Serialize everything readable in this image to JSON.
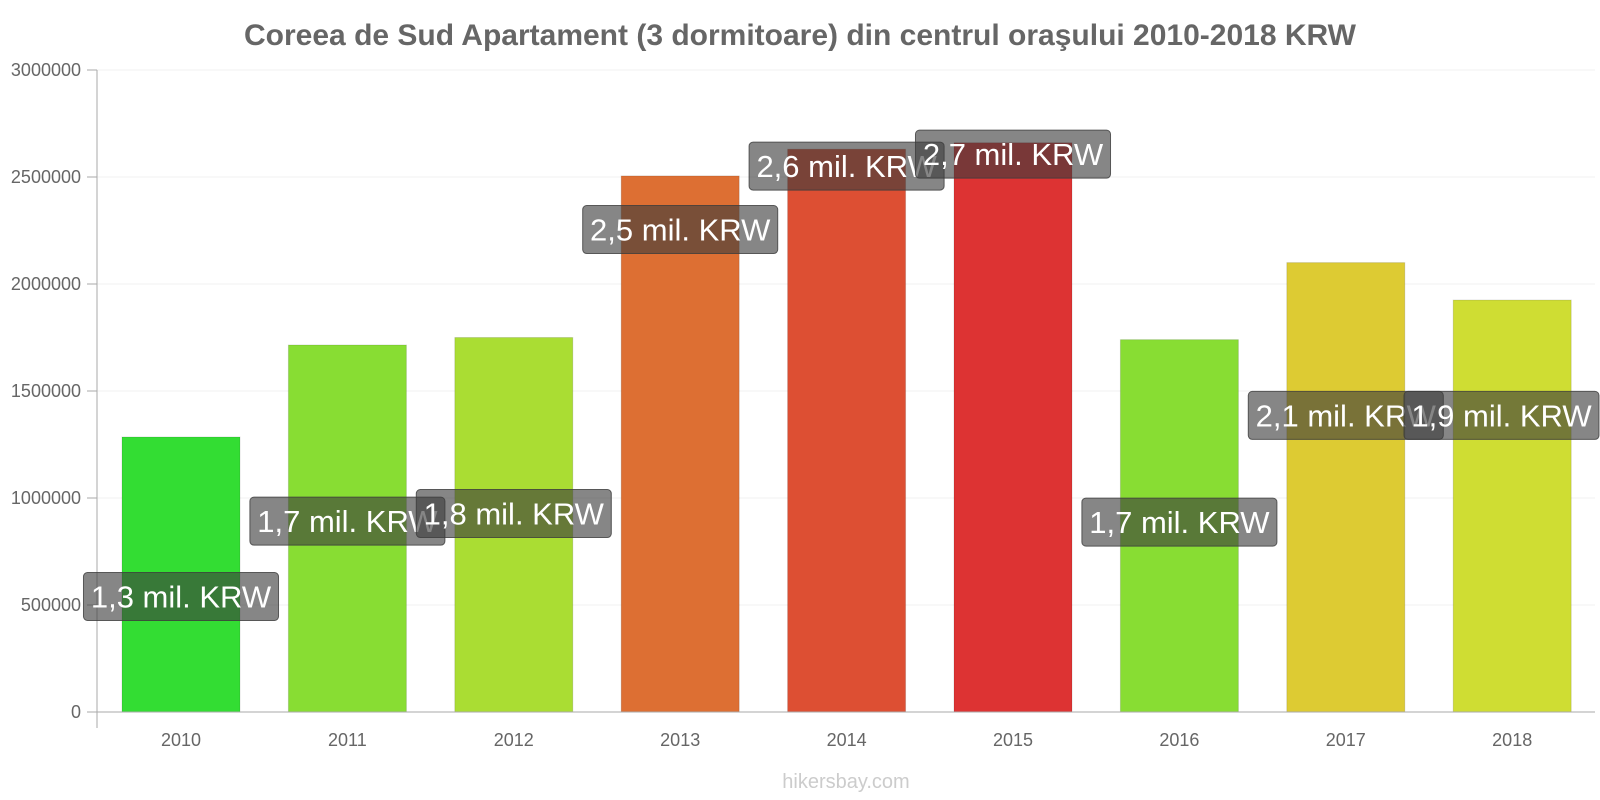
{
  "chart_data": {
    "type": "bar",
    "title": "Coreea de Sud Apartament (3 dormitoare) din centrul oraşului 2010-2018 KRW",
    "xlabel": "",
    "ylabel": "",
    "ylim": [
      0,
      3000000
    ],
    "yticks": [
      "0",
      "500000",
      "1000000",
      "1500000",
      "2000000",
      "2500000",
      "3000000"
    ],
    "grid": true,
    "legend": "none",
    "categories": [
      "2010",
      "2011",
      "2012",
      "2013",
      "2014",
      "2015",
      "2016",
      "2017",
      "2018"
    ],
    "values": [
      1285000,
      1715000,
      1750000,
      2505000,
      2630000,
      2660000,
      1740000,
      2100000,
      1925000
    ],
    "data_labels": [
      "1,3 mil. KRW",
      "1,7 mil. KRW",
      "1,8 mil. KRW",
      "2,5 mil. KRW",
      "2,6 mil. KRW",
      "2,7 mil. KRW",
      "1,7 mil. KRW",
      "2,1 mil. KRW",
      "1,9 mil. KRW"
    ],
    "colors": [
      "#33dd33",
      "#88dd33",
      "#aadd33",
      "#dd6f33",
      "#dd4f33",
      "#dd3333",
      "#88dd33",
      "#ddcb33",
      "#cfdd33"
    ]
  },
  "credit": "hikersbay.com"
}
